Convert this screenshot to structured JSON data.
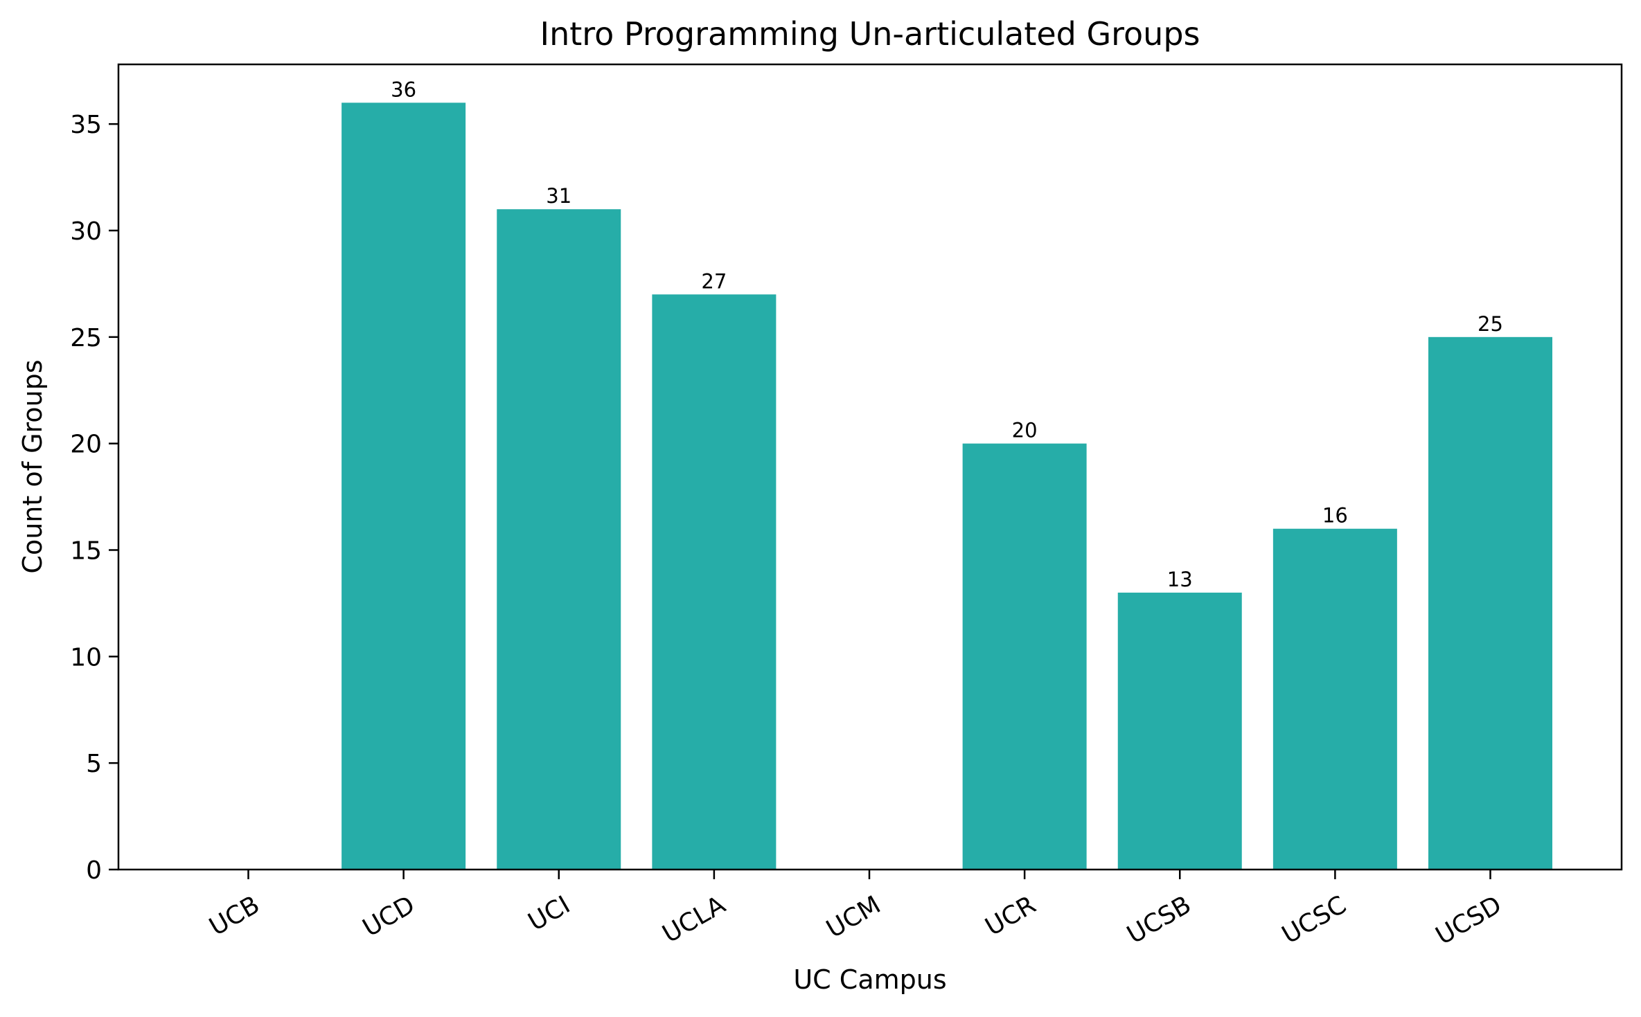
{
  "chart_data": {
    "type": "bar",
    "title": "Intro Programming  Un-articulated Groups",
    "xlabel": "UC Campus",
    "ylabel": "Count of Groups",
    "categories": [
      "UCB",
      "UCD",
      "UCI",
      "UCLA",
      "UCM",
      "UCR",
      "UCSB",
      "UCSC",
      "UCSD"
    ],
    "values": [
      0,
      36,
      31,
      27,
      0,
      20,
      13,
      16,
      25
    ],
    "data_labels": [
      "",
      "36",
      "31",
      "27",
      "",
      "20",
      "13",
      "16",
      "25"
    ],
    "yticks": [
      0,
      5,
      10,
      15,
      20,
      25,
      30,
      35
    ],
    "ylim": [
      0,
      37.8
    ],
    "bar_color": "#26ADA8",
    "grid": false,
    "legend": "none"
  }
}
